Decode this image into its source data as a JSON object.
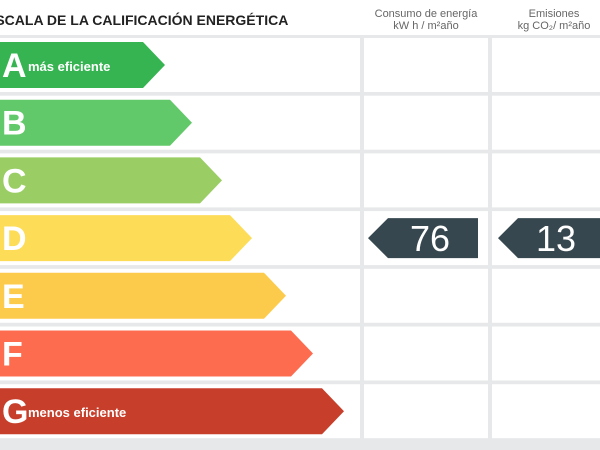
{
  "header": {
    "title": "ESCALA DE LA CALIFICACIÓN ENERGÉTICA",
    "columns": [
      {
        "title": "Consumo de energía",
        "unit": "kW h / m²año"
      },
      {
        "title": "Emisiones",
        "unit": "kg CO₂/ m²año"
      }
    ]
  },
  "ratings": [
    {
      "letter": "A",
      "label": "más eficiente",
      "color": "#35b451"
    },
    {
      "letter": "B",
      "color": "#62c96a"
    },
    {
      "letter": "C",
      "color": "#9acd63"
    },
    {
      "letter": "D",
      "color": "#fddc58",
      "consumption": 76,
      "emissions": 13
    },
    {
      "letter": "E",
      "color": "#fdcb4c"
    },
    {
      "letter": "F",
      "color": "#fe6c50"
    },
    {
      "letter": "G",
      "label": "menos eficiente",
      "color": "#c73f2b"
    }
  ]
}
